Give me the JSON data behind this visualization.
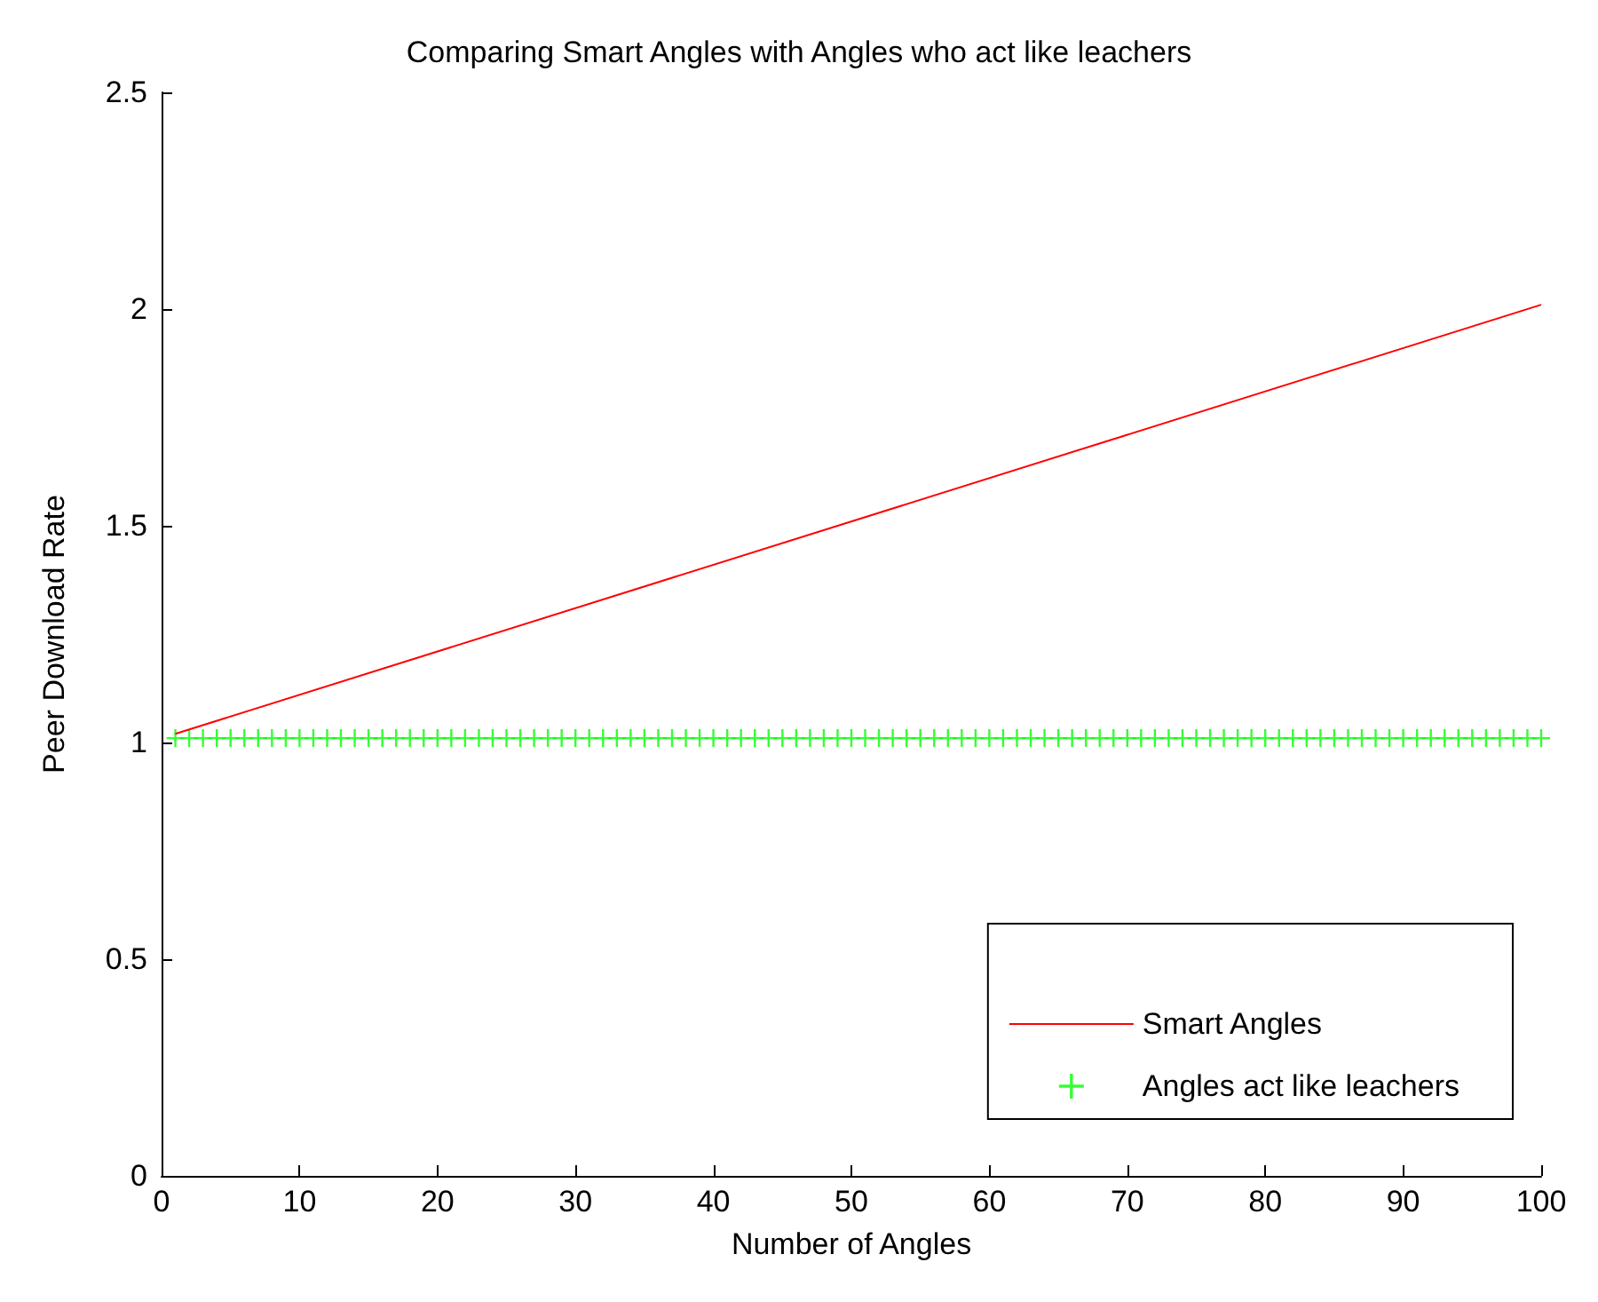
{
  "chart_data": {
    "type": "line",
    "title": "Comparing Smart Angles with Angles who act like leachers",
    "xlabel": "Number of Angles",
    "ylabel": "Peer Download Rate",
    "xlim": [
      0,
      100
    ],
    "xticks": [
      0,
      10,
      20,
      30,
      40,
      50,
      60,
      70,
      80,
      90,
      100
    ],
    "ylim": [
      0,
      2.5
    ],
    "yticks": [
      0,
      0.5,
      1,
      1.5,
      2,
      2.5
    ],
    "grid": false,
    "legend": "bottom right",
    "series": [
      {
        "name": "Smart Angles",
        "type": "line",
        "color": "#ff0000",
        "marker": "none",
        "line_style": "solid",
        "x": [
          1,
          100
        ],
        "values": [
          1.02,
          2.01
        ]
      },
      {
        "name": "Angles act like leachers",
        "type": "scatter",
        "color": "#00ff00",
        "marker": "cross",
        "x": [
          1,
          2,
          3,
          4,
          5,
          6,
          7,
          8,
          9,
          10,
          11,
          12,
          13,
          14,
          15,
          16,
          17,
          18,
          19,
          20,
          21,
          22,
          23,
          24,
          25,
          26,
          27,
          28,
          29,
          30,
          31,
          32,
          33,
          34,
          35,
          36,
          37,
          38,
          39,
          40,
          41,
          42,
          43,
          44,
          45,
          46,
          47,
          48,
          49,
          50,
          51,
          52,
          53,
          54,
          55,
          56,
          57,
          58,
          59,
          60,
          61,
          62,
          63,
          64,
          65,
          66,
          67,
          68,
          69,
          70,
          71,
          72,
          73,
          74,
          75,
          76,
          77,
          78,
          79,
          80,
          81,
          82,
          83,
          84,
          85,
          86,
          87,
          88,
          89,
          90,
          91,
          92,
          93,
          94,
          95,
          96,
          97,
          98,
          99,
          100
        ],
        "values": [
          1.01,
          1.01,
          1.01,
          1.01,
          1.01,
          1.01,
          1.01,
          1.01,
          1.01,
          1.01,
          1.01,
          1.01,
          1.01,
          1.01,
          1.01,
          1.01,
          1.01,
          1.01,
          1.01,
          1.01,
          1.01,
          1.01,
          1.01,
          1.01,
          1.01,
          1.01,
          1.01,
          1.01,
          1.01,
          1.01,
          1.01,
          1.01,
          1.01,
          1.01,
          1.01,
          1.01,
          1.01,
          1.01,
          1.01,
          1.01,
          1.01,
          1.01,
          1.01,
          1.01,
          1.01,
          1.01,
          1.01,
          1.01,
          1.01,
          1.01,
          1.01,
          1.01,
          1.01,
          1.01,
          1.01,
          1.01,
          1.01,
          1.01,
          1.01,
          1.01,
          1.01,
          1.01,
          1.01,
          1.01,
          1.01,
          1.01,
          1.01,
          1.01,
          1.01,
          1.01,
          1.01,
          1.01,
          1.01,
          1.01,
          1.01,
          1.01,
          1.01,
          1.01,
          1.01,
          1.01,
          1.01,
          1.01,
          1.01,
          1.01,
          1.01,
          1.01,
          1.01,
          1.01,
          1.01,
          1.01,
          1.01,
          1.01,
          1.01,
          1.01,
          1.01,
          1.01,
          1.01,
          1.01,
          1.01,
          1.01
        ]
      }
    ]
  }
}
